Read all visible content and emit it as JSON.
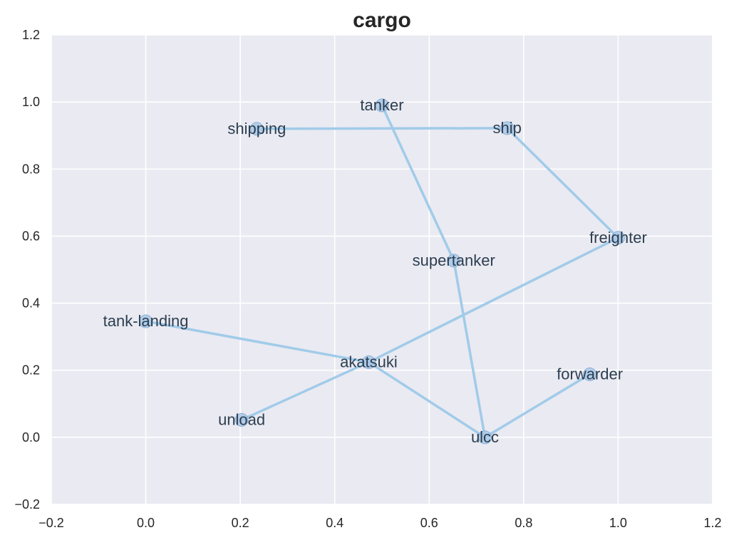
{
  "chart_data": {
    "type": "scatter",
    "title": "cargo",
    "xlabel": "",
    "ylabel": "",
    "xlim": [
      -0.2,
      1.2
    ],
    "ylim": [
      -0.2,
      1.2
    ],
    "xticks": [
      "−0.2",
      "0.0",
      "0.2",
      "0.4",
      "0.6",
      "0.8",
      "1.0",
      "1.2"
    ],
    "yticks": [
      "−0.2",
      "0.0",
      "0.2",
      "0.4",
      "0.6",
      "0.8",
      "1.0",
      "1.2"
    ],
    "grid": true,
    "points": [
      {
        "label": "shipping",
        "x": 0.235,
        "y": 0.92
      },
      {
        "label": "tanker",
        "x": 0.5,
        "y": 0.99
      },
      {
        "label": "ship",
        "x": 0.765,
        "y": 0.922
      },
      {
        "label": "freighter",
        "x": 1.0,
        "y": 0.595
      },
      {
        "label": "supertanker",
        "x": 0.652,
        "y": 0.527
      },
      {
        "label": "tank-landing",
        "x": 0.0,
        "y": 0.346
      },
      {
        "label": "akatsuki",
        "x": 0.472,
        "y": 0.224
      },
      {
        "label": "forwarder",
        "x": 0.94,
        "y": 0.188
      },
      {
        "label": "unload",
        "x": 0.203,
        "y": 0.052
      },
      {
        "label": "ulcc",
        "x": 0.718,
        "y": 0.0
      }
    ],
    "edges": [
      [
        "shipping",
        "ship"
      ],
      [
        "tanker",
        "supertanker"
      ],
      [
        "ship",
        "freighter"
      ],
      [
        "freighter",
        "akatsuki"
      ],
      [
        "supertanker",
        "ulcc"
      ],
      [
        "tank-landing",
        "akatsuki"
      ],
      [
        "akatsuki",
        "unload"
      ],
      [
        "akatsuki",
        "ulcc"
      ],
      [
        "ulcc",
        "forwarder"
      ]
    ],
    "colors": {
      "background": "#eaeaf2",
      "grid": "#ffffff",
      "line": "#a1cbe9",
      "marker_fill": "#a8c8e8",
      "marker_stroke": "#8ab0d6",
      "label": "#2c3e50"
    }
  }
}
